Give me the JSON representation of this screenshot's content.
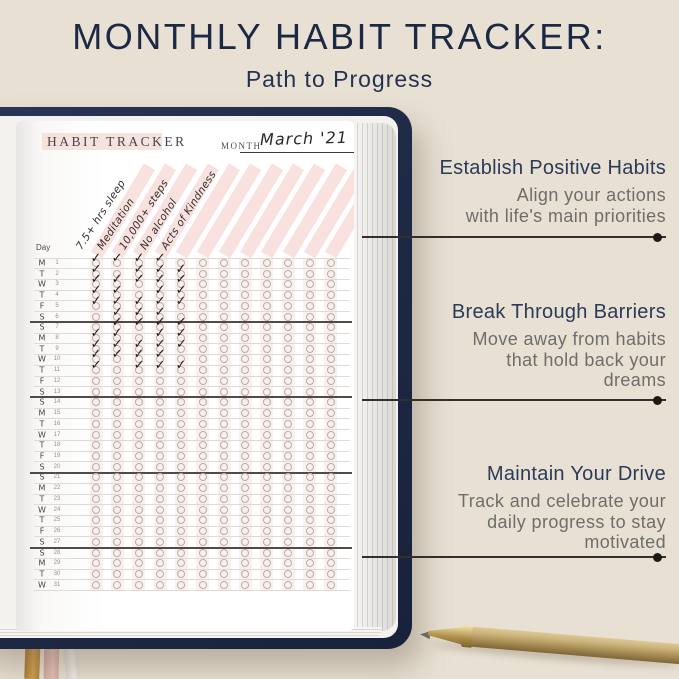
{
  "title": "MONTHLY HABIT TRACKER:",
  "subtitle": "Path to Progress",
  "journal": {
    "page_title": "HABIT TRACKER",
    "month_label": "MONTH",
    "month_value": "March '21",
    "day_column_label": "Day",
    "habit_columns": [
      "7.5+ hrs sleep",
      "Meditation",
      "10,000+ steps",
      "No alcohol",
      "Acts of Kindness"
    ],
    "total_columns": 12,
    "week_divider_after_rows": [
      6,
      13,
      20,
      27
    ],
    "rows": [
      {
        "day": "M",
        "date": 1,
        "checks": [
          1,
          1,
          1,
          1,
          0
        ]
      },
      {
        "day": "T",
        "date": 2,
        "checks": [
          1,
          0,
          1,
          1,
          1
        ]
      },
      {
        "day": "W",
        "date": 3,
        "checks": [
          1,
          1,
          1,
          1,
          1
        ]
      },
      {
        "day": "T",
        "date": 4,
        "checks": [
          1,
          1,
          0,
          1,
          1
        ]
      },
      {
        "day": "F",
        "date": 5,
        "checks": [
          1,
          1,
          1,
          1,
          1
        ]
      },
      {
        "day": "S",
        "date": 6,
        "checks": [
          0,
          1,
          1,
          1,
          0
        ]
      },
      {
        "day": "S",
        "date": 7,
        "checks": [
          0,
          1,
          1,
          1,
          1
        ]
      },
      {
        "day": "M",
        "date": 8,
        "checks": [
          1,
          1,
          0,
          1,
          1
        ]
      },
      {
        "day": "T",
        "date": 9,
        "checks": [
          1,
          1,
          1,
          1,
          1
        ]
      },
      {
        "day": "W",
        "date": 10,
        "checks": [
          1,
          1,
          1,
          1,
          0
        ]
      },
      {
        "day": "T",
        "date": 11,
        "checks": [
          1,
          0,
          1,
          1,
          1
        ]
      },
      {
        "day": "F",
        "date": 12,
        "checks": [
          0,
          0,
          0,
          0,
          0
        ]
      },
      {
        "day": "S",
        "date": 13,
        "checks": [
          0,
          0,
          0,
          0,
          0
        ]
      },
      {
        "day": "S",
        "date": 14,
        "checks": [
          0,
          0,
          0,
          0,
          0
        ]
      },
      {
        "day": "M",
        "date": 15,
        "checks": [
          0,
          0,
          0,
          0,
          0
        ]
      },
      {
        "day": "T",
        "date": 16,
        "checks": [
          0,
          0,
          0,
          0,
          0
        ]
      },
      {
        "day": "W",
        "date": 17,
        "checks": [
          0,
          0,
          0,
          0,
          0
        ]
      },
      {
        "day": "T",
        "date": 18,
        "checks": [
          0,
          0,
          0,
          0,
          0
        ]
      },
      {
        "day": "F",
        "date": 19,
        "checks": [
          0,
          0,
          0,
          0,
          0
        ]
      },
      {
        "day": "S",
        "date": 20,
        "checks": [
          0,
          0,
          0,
          0,
          0
        ]
      },
      {
        "day": "S",
        "date": 21,
        "checks": [
          0,
          0,
          0,
          0,
          0
        ]
      },
      {
        "day": "M",
        "date": 22,
        "checks": [
          0,
          0,
          0,
          0,
          0
        ]
      },
      {
        "day": "T",
        "date": 23,
        "checks": [
          0,
          0,
          0,
          0,
          0
        ]
      },
      {
        "day": "W",
        "date": 24,
        "checks": [
          0,
          0,
          0,
          0,
          0
        ]
      },
      {
        "day": "T",
        "date": 25,
        "checks": [
          0,
          0,
          0,
          0,
          0
        ]
      },
      {
        "day": "F",
        "date": 26,
        "checks": [
          0,
          0,
          0,
          0,
          0
        ]
      },
      {
        "day": "S",
        "date": 27,
        "checks": [
          0,
          0,
          0,
          0,
          0
        ]
      },
      {
        "day": "S",
        "date": 28,
        "checks": [
          0,
          0,
          0,
          0,
          0
        ]
      },
      {
        "day": "M",
        "date": 29,
        "checks": [
          0,
          0,
          0,
          0,
          0
        ]
      },
      {
        "day": "T",
        "date": 30,
        "checks": [
          0,
          0,
          0,
          0,
          0
        ]
      },
      {
        "day": "W",
        "date": 31,
        "checks": [
          0,
          0,
          0,
          0,
          0
        ]
      }
    ]
  },
  "annotations": [
    {
      "heading": "Establish Positive Habits",
      "body": [
        "Align your actions",
        "with life's main priorities"
      ]
    },
    {
      "heading": "Break Through Barriers",
      "body": [
        "Move away from habits",
        "that hold back your",
        "dreams"
      ]
    },
    {
      "heading": "Maintain Your Drive",
      "body": [
        "Track and celebrate your",
        "daily progress to stay",
        "motivated"
      ]
    }
  ],
  "colors": {
    "background": "#e8e0d3",
    "title_navy": "#1c2944",
    "cover_navy": "#1f2b47",
    "stripe_pink": "#f7dcd8",
    "annotation_heading": "#2b3a58",
    "annotation_body": "#6f6d6a",
    "connector_line": "#332f2a",
    "pen_gold": "#cbb47c"
  }
}
